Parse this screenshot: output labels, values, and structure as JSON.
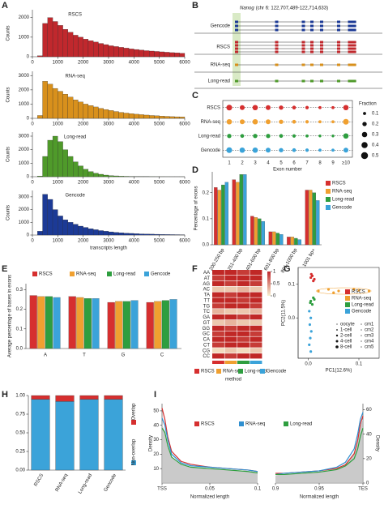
{
  "panel_labels": [
    "A",
    "B",
    "C",
    "D",
    "E",
    "F",
    "G",
    "H",
    "I"
  ],
  "panel_b": {
    "gene": "Nanog",
    "region": "(chr 6: 122,707,489-122,714,633)",
    "tracks": [
      "Gencode",
      "RSCS",
      "RNA-seq",
      "Long-read"
    ]
  },
  "chart_data": [
    {
      "type": "histogram",
      "title": "RSCS",
      "ylabel": "Counts",
      "color": "#c0282d",
      "bins": [
        0,
        200,
        400,
        600,
        800,
        1000,
        1200,
        1400,
        1600,
        1800,
        2000,
        2200,
        2400,
        2600,
        2800,
        3000,
        3200,
        3400,
        3600,
        3800,
        4000,
        4200,
        4400,
        4600,
        4800,
        5000,
        5200,
        5400,
        5600,
        5800,
        6000
      ],
      "counts": [
        0,
        50,
        1700,
        2000,
        1800,
        1600,
        1400,
        1250,
        1100,
        1000,
        900,
        820,
        750,
        680,
        620,
        560,
        520,
        480,
        440,
        400,
        370,
        340,
        310,
        290,
        270,
        250,
        230,
        210,
        200,
        180
      ],
      "xlim": [
        0,
        6000
      ],
      "xticks": [
        0,
        1000,
        2000,
        3000,
        4000,
        5000,
        6000
      ],
      "ylim": [
        0,
        2400
      ],
      "yticks": [
        0,
        1000,
        2000
      ]
    },
    {
      "type": "histogram",
      "title": "RNA-seq",
      "ylabel": "Counts",
      "color": "#d8901c",
      "bins": [
        0,
        200,
        400,
        600,
        800,
        1000,
        1200,
        1400,
        1600,
        1800,
        2000,
        2200,
        2400,
        2600,
        2800,
        3000,
        3200,
        3400,
        3600,
        3800,
        4000,
        4200,
        4400,
        4600,
        4800,
        5000,
        5200,
        5400,
        5600,
        5800,
        6000
      ],
      "counts": [
        0,
        200,
        2600,
        2400,
        2100,
        1900,
        1700,
        1500,
        1300,
        1150,
        1000,
        900,
        800,
        700,
        620,
        550,
        480,
        420,
        370,
        330,
        290,
        260,
        230,
        200,
        180,
        160,
        140,
        120,
        110,
        100
      ],
      "xlim": [
        0,
        6000
      ],
      "xticks": [
        0,
        1000,
        2000,
        3000,
        4000,
        5000,
        6000
      ],
      "ylim": [
        0,
        3300
      ],
      "yticks": [
        0,
        1000,
        2000,
        3000
      ]
    },
    {
      "type": "histogram",
      "title": "Long-read",
      "ylabel": "Counts",
      "color": "#4f9a2a",
      "bins": [
        0,
        200,
        400,
        600,
        800,
        1000,
        1200,
        1400,
        1600,
        1800,
        2000,
        2200,
        2400,
        2600,
        2800,
        3000,
        3200,
        3400,
        3600,
        3800,
        4000,
        4200,
        4400,
        4600,
        4800,
        5000,
        5200,
        5400,
        5600,
        5800,
        6000
      ],
      "counts": [
        0,
        50,
        1500,
        2700,
        3000,
        2600,
        2000,
        1500,
        1100,
        800,
        550,
        380,
        260,
        180,
        120,
        80,
        60,
        40,
        30,
        20,
        15,
        10,
        8,
        6,
        5,
        4,
        3,
        2,
        2,
        1
      ],
      "xlim": [
        0,
        6000
      ],
      "xticks": [
        0,
        1000,
        2000,
        3000,
        4000,
        5000,
        6000
      ],
      "ylim": [
        0,
        3300
      ],
      "yticks": [
        0,
        1000,
        2000,
        3000
      ]
    },
    {
      "type": "histogram",
      "title": "Gencode",
      "ylabel": "Counts",
      "xlabel": "transcripts length",
      "color": "#1c3a96",
      "bins": [
        0,
        200,
        400,
        600,
        800,
        1000,
        1200,
        1400,
        1600,
        1800,
        2000,
        2200,
        2400,
        2600,
        2800,
        3000,
        3200,
        3400,
        3600,
        3800,
        4000,
        4200,
        4400,
        4600,
        4800,
        5000,
        5200,
        5400,
        5600,
        5800,
        6000
      ],
      "counts": [
        0,
        300,
        3200,
        2800,
        2000,
        1500,
        1200,
        1000,
        850,
        700,
        600,
        500,
        420,
        350,
        300,
        250,
        210,
        180,
        150,
        130,
        110,
        90,
        80,
        70,
        60,
        50,
        40,
        35,
        30,
        25
      ],
      "xlim": [
        0,
        6000
      ],
      "xticks": [
        0,
        1000,
        2000,
        3000,
        4000,
        5000,
        6000
      ],
      "ylim": [
        0,
        3500
      ],
      "yticks": [
        0,
        1000,
        2000,
        3000
      ]
    },
    {
      "type": "dot",
      "xlabel": "Exon number",
      "categories": [
        "1",
        "2",
        "3",
        "4",
        "5",
        "6",
        "7",
        "8",
        "9",
        "≥10"
      ],
      "series": [
        {
          "name": "RSCS",
          "color": "#d62f2f",
          "values": [
            0.35,
            0.25,
            0.3,
            0.25,
            0.2,
            0.15,
            0.12,
            0.1,
            0.1,
            0.3
          ]
        },
        {
          "name": "RNA-seq",
          "color": "#f0a030",
          "values": [
            0.3,
            0.25,
            0.3,
            0.25,
            0.2,
            0.15,
            0.12,
            0.1,
            0.1,
            0.35
          ]
        },
        {
          "name": "Long-read",
          "color": "#2e9e3f",
          "values": [
            0.2,
            0.15,
            0.2,
            0.2,
            0.15,
            0.12,
            0.1,
            0.08,
            0.08,
            0.3
          ]
        },
        {
          "name": "Gencode",
          "color": "#3ba3d9",
          "values": [
            0.35,
            0.3,
            0.3,
            0.25,
            0.2,
            0.15,
            0.12,
            0.1,
            0.1,
            0.25
          ]
        }
      ],
      "size_title": "Fraction",
      "size_legend": [
        0.1,
        0.2,
        0.3,
        0.4,
        0.5
      ]
    },
    {
      "type": "bar",
      "ylabel": "Percentage of exons",
      "legend": "right",
      "categories": [
        "200-250 bp",
        "251-400 bp",
        "401-600 bp",
        "601-800 bp",
        "801-1000 bp",
        "1001 bp+"
      ],
      "series": [
        {
          "name": "RSCS",
          "color": "#d62f2f",
          "values": [
            0.22,
            0.25,
            0.11,
            0.05,
            0.03,
            0.21
          ]
        },
        {
          "name": "RNA-seq",
          "color": "#f0a030",
          "values": [
            0.21,
            0.24,
            0.105,
            0.05,
            0.03,
            0.21
          ]
        },
        {
          "name": "Long-read",
          "color": "#2e9e3f",
          "values": [
            0.23,
            0.27,
            0.1,
            0.045,
            0.025,
            0.2
          ]
        },
        {
          "name": "Gencode",
          "color": "#3ba3d9",
          "values": [
            0.24,
            0.27,
            0.09,
            0.04,
            0.02,
            0.17
          ]
        }
      ],
      "ylim": [
        0,
        0.28
      ],
      "yticks": [
        {
          "value": 0,
          "label": "0.0"
        },
        0.1,
        0.2
      ]
    },
    {
      "type": "bar",
      "ylabel": "Average percentage of bases in exons",
      "legend": "top",
      "categories": [
        "A",
        "T",
        "G",
        "C"
      ],
      "series": [
        {
          "name": "RSCS",
          "color": "#d62f2f",
          "values": [
            0.27,
            0.265,
            0.235,
            0.235
          ]
        },
        {
          "name": "RNA-seq",
          "color": "#f0a030",
          "values": [
            0.265,
            0.26,
            0.24,
            0.24
          ]
        },
        {
          "name": "Long-read",
          "color": "#2e9e3f",
          "values": [
            0.265,
            0.255,
            0.24,
            0.245
          ]
        },
        {
          "name": "Gencode",
          "color": "#3ba3d9",
          "values": [
            0.26,
            0.255,
            0.245,
            0.25
          ]
        }
      ],
      "ylim": [
        0,
        0.33
      ],
      "yticks": [
        {
          "value": 0,
          "label": "0.0"
        },
        0.1,
        0.2,
        0.3
      ]
    },
    {
      "type": "heatmap",
      "xlabel": "method",
      "rows": [
        "AA",
        "AT",
        "AG",
        "AC",
        "TA",
        "TT",
        "TG",
        "TC",
        "GA",
        "GT",
        "GG",
        "GC",
        "CA",
        "CT",
        "CG",
        "CC"
      ],
      "series": [
        {
          "name": "RSCS",
          "color": "#d62f2f",
          "values": [
            1,
            0.9,
            1,
            0.2,
            1,
            1,
            0.9,
            0.3,
            1,
            0.2,
            1,
            0.9,
            1,
            0.9,
            0.1,
            1
          ]
        },
        {
          "name": "RNA-seq",
          "color": "#f0a030",
          "values": [
            1,
            1,
            0.9,
            0.2,
            0.9,
            1,
            1,
            0.2,
            1,
            0.3,
            0.9,
            1,
            1,
            1,
            0.2,
            0.9
          ]
        },
        {
          "name": "Long-read",
          "color": "#2e9e3f",
          "values": [
            0.9,
            1,
            1,
            0.3,
            1,
            0.9,
            1,
            0.2,
            0.9,
            0.2,
            1,
            1,
            0.9,
            1,
            0.1,
            1
          ]
        },
        {
          "name": "Gencode",
          "color": "#3ba3d9",
          "values": [
            1,
            1,
            0.9,
            0.2,
            1,
            1,
            0.9,
            0.3,
            1,
            0.2,
            1,
            0.9,
            1,
            0.9,
            0.2,
            1
          ]
        }
      ],
      "scale_ticks": [
        1,
        0.5,
        0
      ]
    },
    {
      "type": "scatter",
      "xlabel": "PC1(12.6%)",
      "ylabel": "PC2(11.5%)",
      "series": [
        {
          "name": "RSCS",
          "color": "#d62f2f",
          "x": [
            0.005,
            0.01,
            0.008,
            0.012,
            0.006
          ],
          "y": [
            0.12,
            0.11,
            0.125,
            0.115,
            0.13
          ]
        },
        {
          "name": "RNA-seq",
          "color": "#f0a030",
          "x": [
            0.02,
            0.04,
            0.06,
            0.08,
            0.1,
            0.12,
            0.05,
            0.09
          ],
          "y": [
            0.08,
            0.085,
            0.08,
            0.078,
            0.082,
            0.08,
            0.075,
            0.085
          ]
        },
        {
          "name": "Long-read",
          "color": "#2e9e3f",
          "x": [
            0.005,
            0.01,
            0.008,
            0.012,
            0.004
          ],
          "y": [
            0.05,
            0.06,
            0.04,
            0.055,
            0.045
          ]
        },
        {
          "name": "Gencode",
          "color": "#3ba3d9",
          "x": [
            0.002,
            0.005,
            0.003,
            0.006,
            0.004,
            0.002,
            0.005
          ],
          "y": [
            0.02,
            0,
            -0.02,
            -0.04,
            -0.06,
            -0.08,
            -0.1
          ]
        }
      ],
      "stage_labels": [
        "oocyte",
        "1-cell",
        "2-cell",
        "4-cell",
        "8-cell"
      ],
      "cm_labels": [
        "cm1",
        "cm2",
        "cm3",
        "cm4",
        "cm5"
      ],
      "xlim": [
        -0.02,
        0.14
      ],
      "xticks": [
        {
          "value": 0,
          "label": "0.0"
        },
        0.1
      ],
      "ylim": [
        -0.12,
        0.15
      ],
      "yticks": [
        {
          "value": 0,
          "label": "0.0"
        },
        0.1
      ]
    },
    {
      "type": "stacked_bar",
      "categories": [
        "RSCS",
        "RNA-seq",
        "Long-read",
        "Gencode"
      ],
      "series": [
        {
          "name": "Non-overlap",
          "color": "#3ba3d9",
          "values": [
            0.95,
            0.92,
            0.95,
            0.95
          ]
        },
        {
          "name": "Overlap",
          "color": "#d62f2f",
          "values": [
            0.05,
            0.08,
            0.05,
            0.05
          ]
        }
      ],
      "ylim": [
        0,
        1
      ],
      "yticks": [
        {
          "value": 0,
          "label": "0.00"
        },
        {
          "value": 0.25,
          "label": "0.25"
        },
        {
          "value": 0.5,
          "label": "0.50"
        },
        {
          "value": 0.75,
          "label": "0.75"
        },
        {
          "value": 1,
          "label": "1.00"
        }
      ]
    },
    {
      "type": "density",
      "ylabel": "Density",
      "xlabel": "Normalized length",
      "series": [
        {
          "name": "RSCS",
          "color": "#d62f2f"
        },
        {
          "name": "RNA-seq",
          "color": "#2f8fd0"
        },
        {
          "name": "Long-read",
          "color": "#2e9e3f"
        }
      ],
      "panels": [
        {
          "x": [
            0,
            0.003,
            0.006,
            0.01,
            0.02,
            0.03,
            0.05,
            0.07,
            0.09,
            0.1
          ],
          "xlim": [
            0,
            0.1
          ],
          "xticks": [
            {
              "value": 0,
              "label": "TSS"
            },
            0.05,
            0.1
          ],
          "ylim": [
            0,
            55
          ],
          "yticks": [
            10,
            20,
            30,
            40,
            50
          ],
          "values": [
            [
              52,
              44,
              32,
              22,
              15,
              13,
              11,
              10,
              9,
              8
            ],
            [
              45,
              40,
              30,
              20,
              14,
              12,
              11,
              10,
              9,
              8
            ],
            [
              38,
              35,
              26,
              18,
              13,
              11,
              10,
              9,
              8,
              7
            ]
          ]
        },
        {
          "x": [
            0.9,
            0.91,
            0.93,
            0.95,
            0.97,
            0.98,
            0.99,
            0.994,
            0.997,
            1
          ],
          "xlim": [
            0.9,
            1
          ],
          "xticks": [
            0.9,
            0.95,
            {
              "value": 1,
              "label": "TES"
            }
          ],
          "ylim": [
            0,
            65
          ],
          "yticks": [
            0,
            20,
            40,
            60
          ],
          "values": [
            [
              8,
              8,
              9,
              10,
              12,
              15,
              24,
              35,
              48,
              55
            ],
            [
              7,
              8,
              9,
              10,
              13,
              17,
              28,
              40,
              52,
              58
            ],
            [
              7,
              7,
              8,
              9,
              11,
              14,
              20,
              28,
              38,
              45
            ]
          ]
        }
      ]
    }
  ]
}
